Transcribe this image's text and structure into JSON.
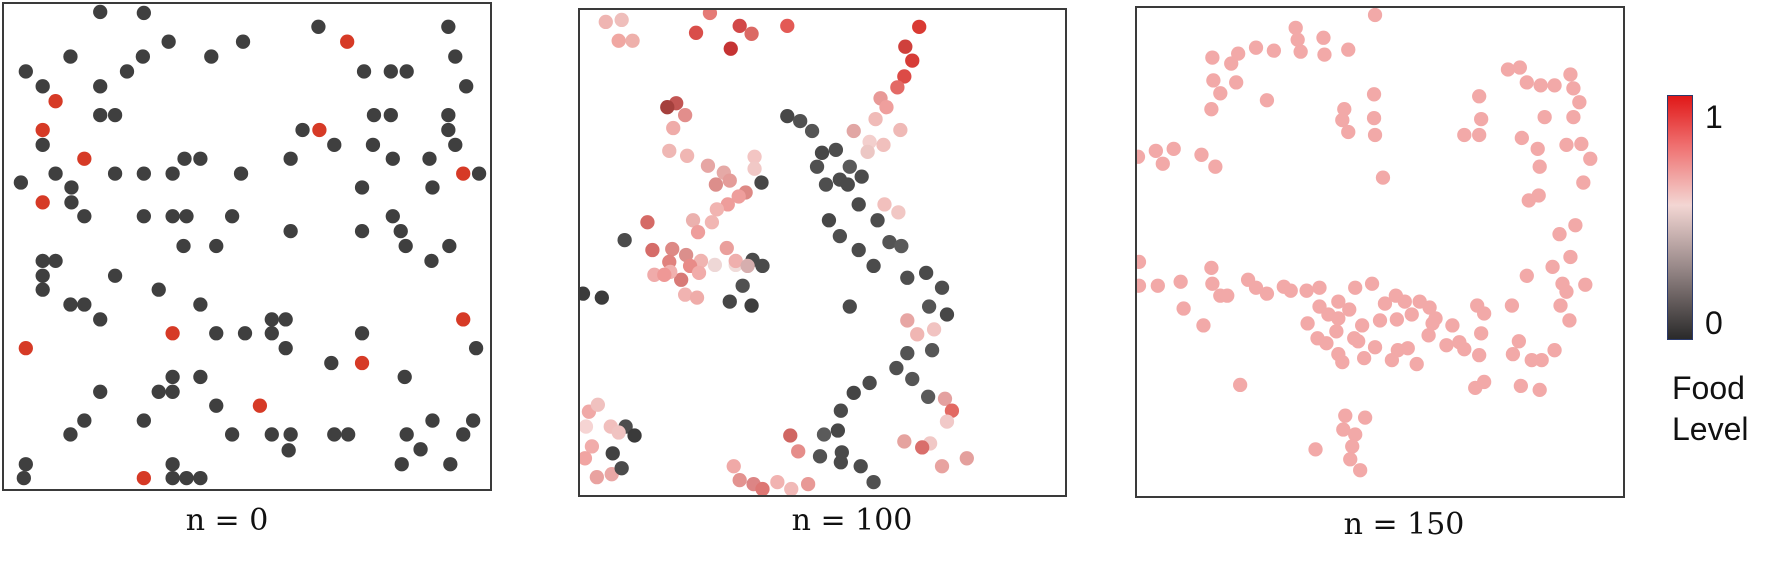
{
  "panels": [
    {
      "caption": "n = 0"
    },
    {
      "caption": "n = 100"
    },
    {
      "caption": "n = 150"
    }
  ],
  "colorbar": {
    "title_line1": "Food",
    "title_line2": "Level",
    "tick_max": "1",
    "tick_min": "0",
    "color_min": "#2a2a2a",
    "color_max": "#e01818"
  },
  "colors": {
    "agent_dark": "#3f3f3f",
    "agent_red": "#d63a26",
    "frame": "#3a3a3a"
  }
}
